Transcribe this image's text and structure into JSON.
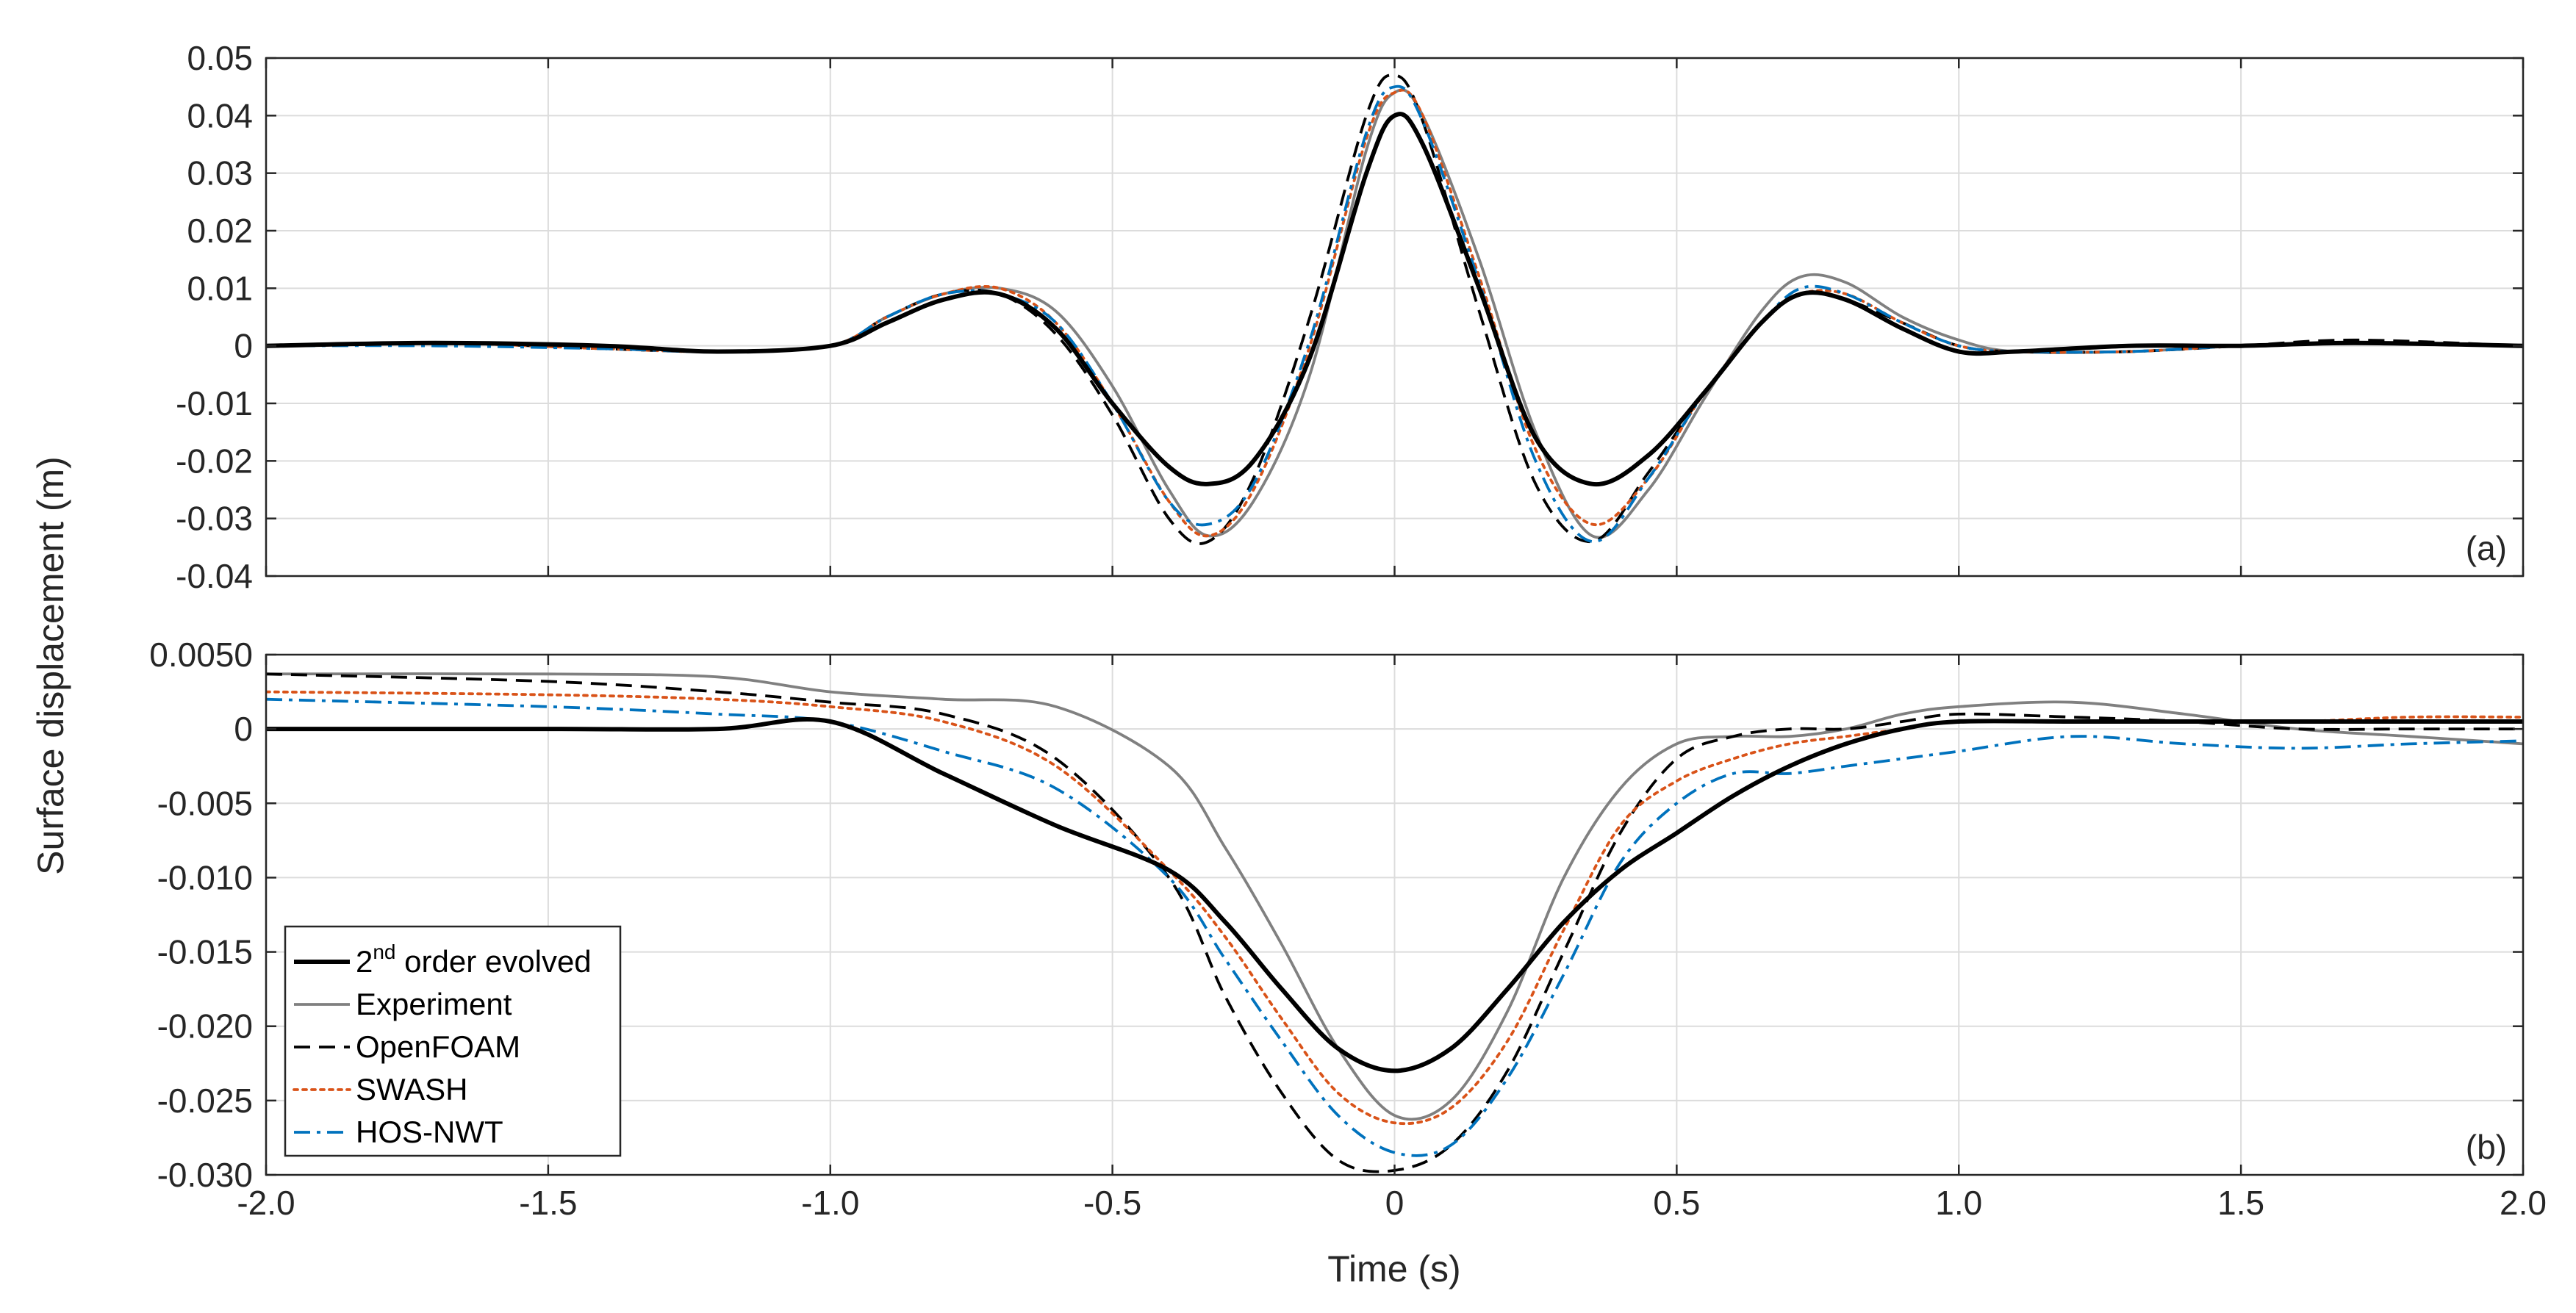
{
  "figure": {
    "ylabel": "Surface displacement (m)",
    "xlabel": "Time (s)"
  },
  "legend": {
    "entries": [
      {
        "key": "evolved",
        "label": "2nd order evolved",
        "label_main": "2",
        "label_sup": "nd",
        "label_rest": " order evolved"
      },
      {
        "key": "experiment",
        "label": "Experiment"
      },
      {
        "key": "openfoam",
        "label": "OpenFOAM"
      },
      {
        "key": "swash",
        "label": "SWASH"
      },
      {
        "key": "hos",
        "label": "HOS-NWT"
      }
    ]
  },
  "series_styles": {
    "evolved": {
      "color": "#000000",
      "dash": "",
      "width_class": "thick"
    },
    "experiment": {
      "color": "#808080",
      "dash": "",
      "width_class": "normal"
    },
    "openfoam": {
      "color": "#000000",
      "dash": "dashed",
      "width_class": "normal"
    },
    "swash": {
      "color": "#D95319",
      "dash": "dotted",
      "width_class": "normal"
    },
    "hos": {
      "color": "#0072BD",
      "dash": "dashdot",
      "width_class": "normal"
    }
  },
  "chart_data": [
    {
      "type": "line",
      "panel": "(a)",
      "xlim": [
        -2.0,
        2.0
      ],
      "ylim": [
        -0.04,
        0.05
      ],
      "x_ticks": [
        "-2.0",
        "-1.5",
        "-1.0",
        "-0.5",
        "0",
        "0.5",
        "1.0",
        "1.5",
        "2.0"
      ],
      "y_ticks": [
        "0.05",
        "0.04",
        "0.03",
        "0.02",
        "0.01",
        "0",
        "-0.01",
        "-0.02",
        "-0.03",
        "-0.04"
      ],
      "y_tick_values": [
        0.05,
        0.04,
        0.03,
        0.02,
        0.01,
        0,
        -0.01,
        -0.02,
        -0.03,
        -0.04
      ],
      "x": [
        -2.0,
        -1.7,
        -1.4,
        -1.2,
        -1.0,
        -0.9,
        -0.8,
        -0.7,
        -0.6,
        -0.5,
        -0.4,
        -0.33,
        -0.25,
        -0.15,
        -0.05,
        0.0,
        0.05,
        0.15,
        0.25,
        0.35,
        0.45,
        0.55,
        0.65,
        0.72,
        0.8,
        0.9,
        1.0,
        1.1,
        1.3,
        1.5,
        1.7,
        2.0
      ],
      "series": [
        {
          "name": "evolved",
          "values": [
            0.0,
            0.0005,
            0.0,
            -0.001,
            0.0,
            0.004,
            0.008,
            0.009,
            0.003,
            -0.01,
            -0.021,
            -0.024,
            -0.02,
            -0.002,
            0.03,
            0.04,
            0.035,
            0.01,
            -0.016,
            -0.024,
            -0.019,
            -0.008,
            0.004,
            0.009,
            0.008,
            0.003,
            -0.001,
            -0.001,
            0.0,
            0.0,
            0.0005,
            0.0
          ]
        },
        {
          "name": "experiment",
          "values": [
            0.0,
            0.0005,
            0.0,
            -0.001,
            0.0,
            0.005,
            0.009,
            0.01,
            0.006,
            -0.007,
            -0.025,
            -0.033,
            -0.027,
            -0.005,
            0.034,
            0.044,
            0.04,
            0.015,
            -0.015,
            -0.033,
            -0.025,
            -0.009,
            0.006,
            0.012,
            0.011,
            0.005,
            0.001,
            -0.001,
            -0.001,
            0.0,
            0.0005,
            0.0
          ]
        },
        {
          "name": "openfoam",
          "values": [
            0.0,
            0.0005,
            -0.0005,
            -0.001,
            0.0,
            0.005,
            0.009,
            0.009,
            0.002,
            -0.012,
            -0.03,
            -0.034,
            -0.023,
            0.005,
            0.04,
            0.047,
            0.039,
            0.006,
            -0.024,
            -0.034,
            -0.022,
            -0.008,
            0.004,
            0.009,
            0.008,
            0.004,
            0.0,
            -0.001,
            -0.001,
            0.0,
            0.001,
            0.0
          ]
        },
        {
          "name": "swash",
          "values": [
            0.0,
            0.0005,
            -0.0005,
            -0.001,
            0.0,
            0.005,
            0.009,
            0.01,
            0.004,
            -0.01,
            -0.027,
            -0.033,
            -0.025,
            0.0,
            0.036,
            0.044,
            0.04,
            0.012,
            -0.018,
            -0.031,
            -0.023,
            -0.008,
            0.004,
            0.009,
            0.009,
            0.004,
            0.0,
            -0.001,
            -0.001,
            0.0,
            0.0005,
            0.0
          ]
        },
        {
          "name": "hos",
          "values": [
            0.0,
            0.0,
            -0.0005,
            -0.001,
            0.0,
            0.005,
            0.009,
            0.009,
            0.004,
            -0.01,
            -0.027,
            -0.031,
            -0.024,
            0.001,
            0.037,
            0.045,
            0.039,
            0.011,
            -0.02,
            -0.034,
            -0.023,
            -0.008,
            0.004,
            0.01,
            0.009,
            0.004,
            0.0,
            -0.001,
            -0.001,
            0.0,
            0.0005,
            0.0
          ]
        }
      ]
    },
    {
      "type": "line",
      "panel": "(b)",
      "xlim": [
        -2.0,
        2.0
      ],
      "ylim": [
        -0.03,
        0.005
      ],
      "x_ticks": [
        "-2.0",
        "-1.5",
        "-1.0",
        "-0.5",
        "0",
        "0.5",
        "1.0",
        "1.5",
        "2.0"
      ],
      "y_ticks": [
        "0.0050",
        "0",
        "-0.005",
        "-0.010",
        "-0.015",
        "-0.020",
        "-0.025",
        "-0.030"
      ],
      "y_tick_values": [
        0.005,
        0,
        -0.005,
        -0.01,
        -0.015,
        -0.02,
        -0.025,
        -0.03
      ],
      "x": [
        -2.0,
        -1.5,
        -1.2,
        -1.0,
        -0.8,
        -0.6,
        -0.4,
        -0.3,
        -0.2,
        -0.1,
        0.0,
        0.1,
        0.2,
        0.3,
        0.4,
        0.5,
        0.6,
        0.7,
        0.8,
        0.9,
        1.0,
        1.2,
        1.4,
        1.6,
        1.8,
        2.0
      ],
      "series": [
        {
          "name": "evolved",
          "values": [
            0.0,
            0.0,
            0.0,
            0.0005,
            -0.003,
            -0.0065,
            -0.0095,
            -0.013,
            -0.0175,
            -0.0215,
            -0.023,
            -0.0215,
            -0.0175,
            -0.013,
            -0.0095,
            -0.007,
            -0.0045,
            -0.0025,
            -0.001,
            0.0,
            0.0005,
            0.0005,
            0.0005,
            0.0005,
            0.0005,
            0.0005
          ]
        },
        {
          "name": "experiment",
          "values": [
            0.0037,
            0.0037,
            0.0035,
            0.0025,
            0.002,
            0.0015,
            -0.0025,
            -0.008,
            -0.0145,
            -0.0215,
            -0.026,
            -0.025,
            -0.019,
            -0.01,
            -0.004,
            -0.001,
            -0.0005,
            -0.0005,
            0.0,
            0.001,
            0.0015,
            0.0018,
            0.001,
            0.0,
            -0.0005,
            -0.001
          ]
        },
        {
          "name": "openfoam",
          "values": [
            0.0037,
            0.0032,
            0.0025,
            0.0018,
            0.001,
            -0.002,
            -0.01,
            -0.018,
            -0.0245,
            -0.029,
            -0.0297,
            -0.028,
            -0.023,
            -0.015,
            -0.007,
            -0.002,
            -0.0005,
            0.0,
            0.0,
            0.0005,
            0.001,
            0.0008,
            0.0005,
            0.0,
            0.0,
            0.0
          ]
        },
        {
          "name": "swash",
          "values": [
            0.0025,
            0.0023,
            0.002,
            0.0015,
            0.0005,
            -0.0025,
            -0.0095,
            -0.014,
            -0.0195,
            -0.0245,
            -0.0265,
            -0.0255,
            -0.021,
            -0.0135,
            -0.0065,
            -0.0035,
            -0.002,
            -0.001,
            -0.0005,
            0.0,
            0.0005,
            0.0005,
            0.0005,
            0.0005,
            0.0008,
            0.0008
          ]
        },
        {
          "name": "hos",
          "values": [
            0.002,
            0.0015,
            0.001,
            0.0005,
            -0.0015,
            -0.004,
            -0.01,
            -0.0155,
            -0.021,
            -0.026,
            -0.0285,
            -0.028,
            -0.0235,
            -0.0165,
            -0.009,
            -0.005,
            -0.003,
            -0.003,
            -0.0025,
            -0.002,
            -0.0015,
            -0.0005,
            -0.001,
            -0.0013,
            -0.001,
            -0.0008
          ]
        }
      ]
    }
  ]
}
